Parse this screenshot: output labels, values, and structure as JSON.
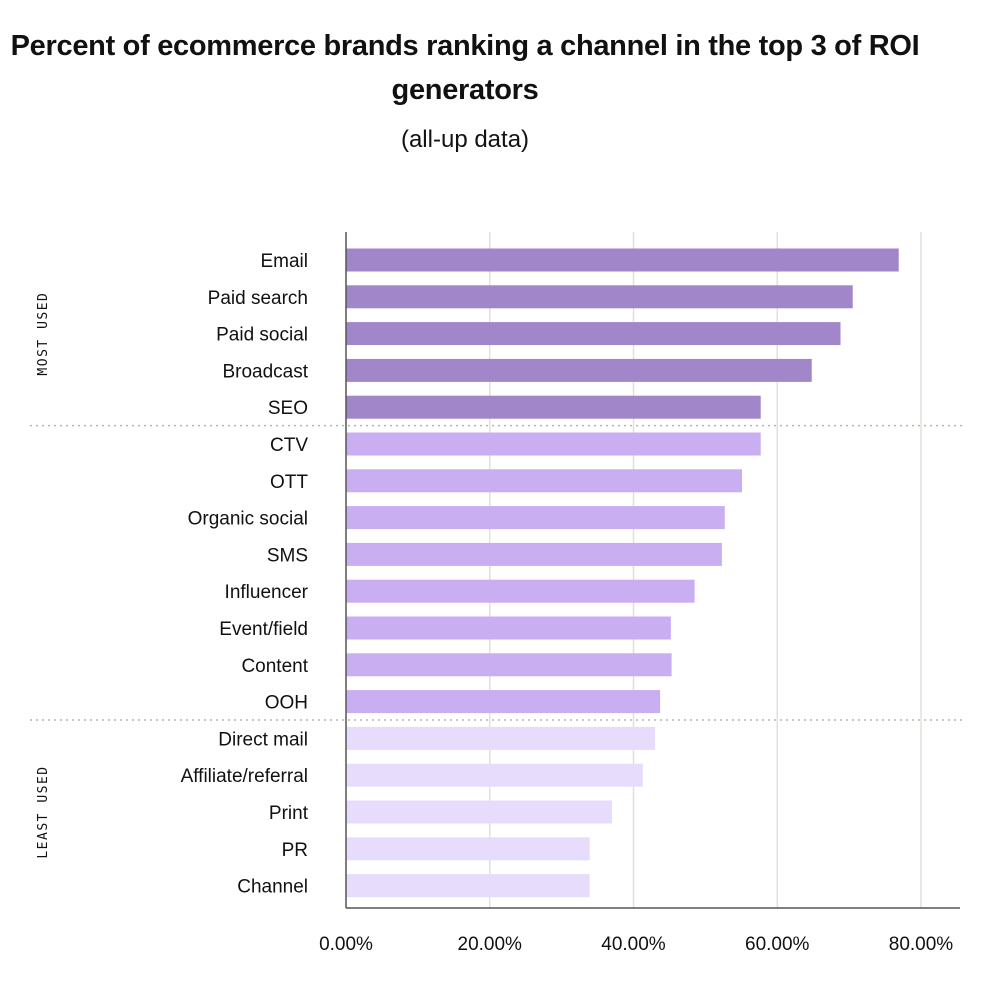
{
  "chart_data": {
    "type": "bar",
    "orientation": "horizontal",
    "title": "Percent of ecommerce brands ranking a channel in the top 3 of ROI generators",
    "subtitle": "(all-up data)",
    "xlabel": "",
    "ylabel": "",
    "xlim": [
      0,
      80
    ],
    "x_ticks": [
      "0.00%",
      "20.00%",
      "40.00%",
      "60.00%",
      "80.00%"
    ],
    "grid": "vertical",
    "categories": [
      "Email",
      "Paid search",
      "Paid social",
      "Broadcast",
      "SEO",
      "CTV",
      "OTT",
      "Organic social",
      "SMS",
      "Influencer",
      "Event/field",
      "Content",
      "OOH",
      "Direct mail",
      "Affiliate/referral",
      "Print",
      "PR",
      "Channel"
    ],
    "values": [
      76.9,
      70.5,
      68.8,
      64.8,
      57.7,
      57.7,
      55.1,
      52.7,
      52.3,
      48.5,
      45.2,
      45.3,
      43.7,
      43.0,
      41.3,
      37.0,
      33.9,
      33.9
    ],
    "groups": [
      {
        "label": "MOST USED",
        "start": 0,
        "end": 4,
        "color": "#a186c9"
      },
      {
        "label": "",
        "start": 5,
        "end": 12,
        "color": "#c9aef2"
      },
      {
        "label": "LEAST USED",
        "start": 13,
        "end": 17,
        "color": "#e7dcfb"
      }
    ]
  }
}
